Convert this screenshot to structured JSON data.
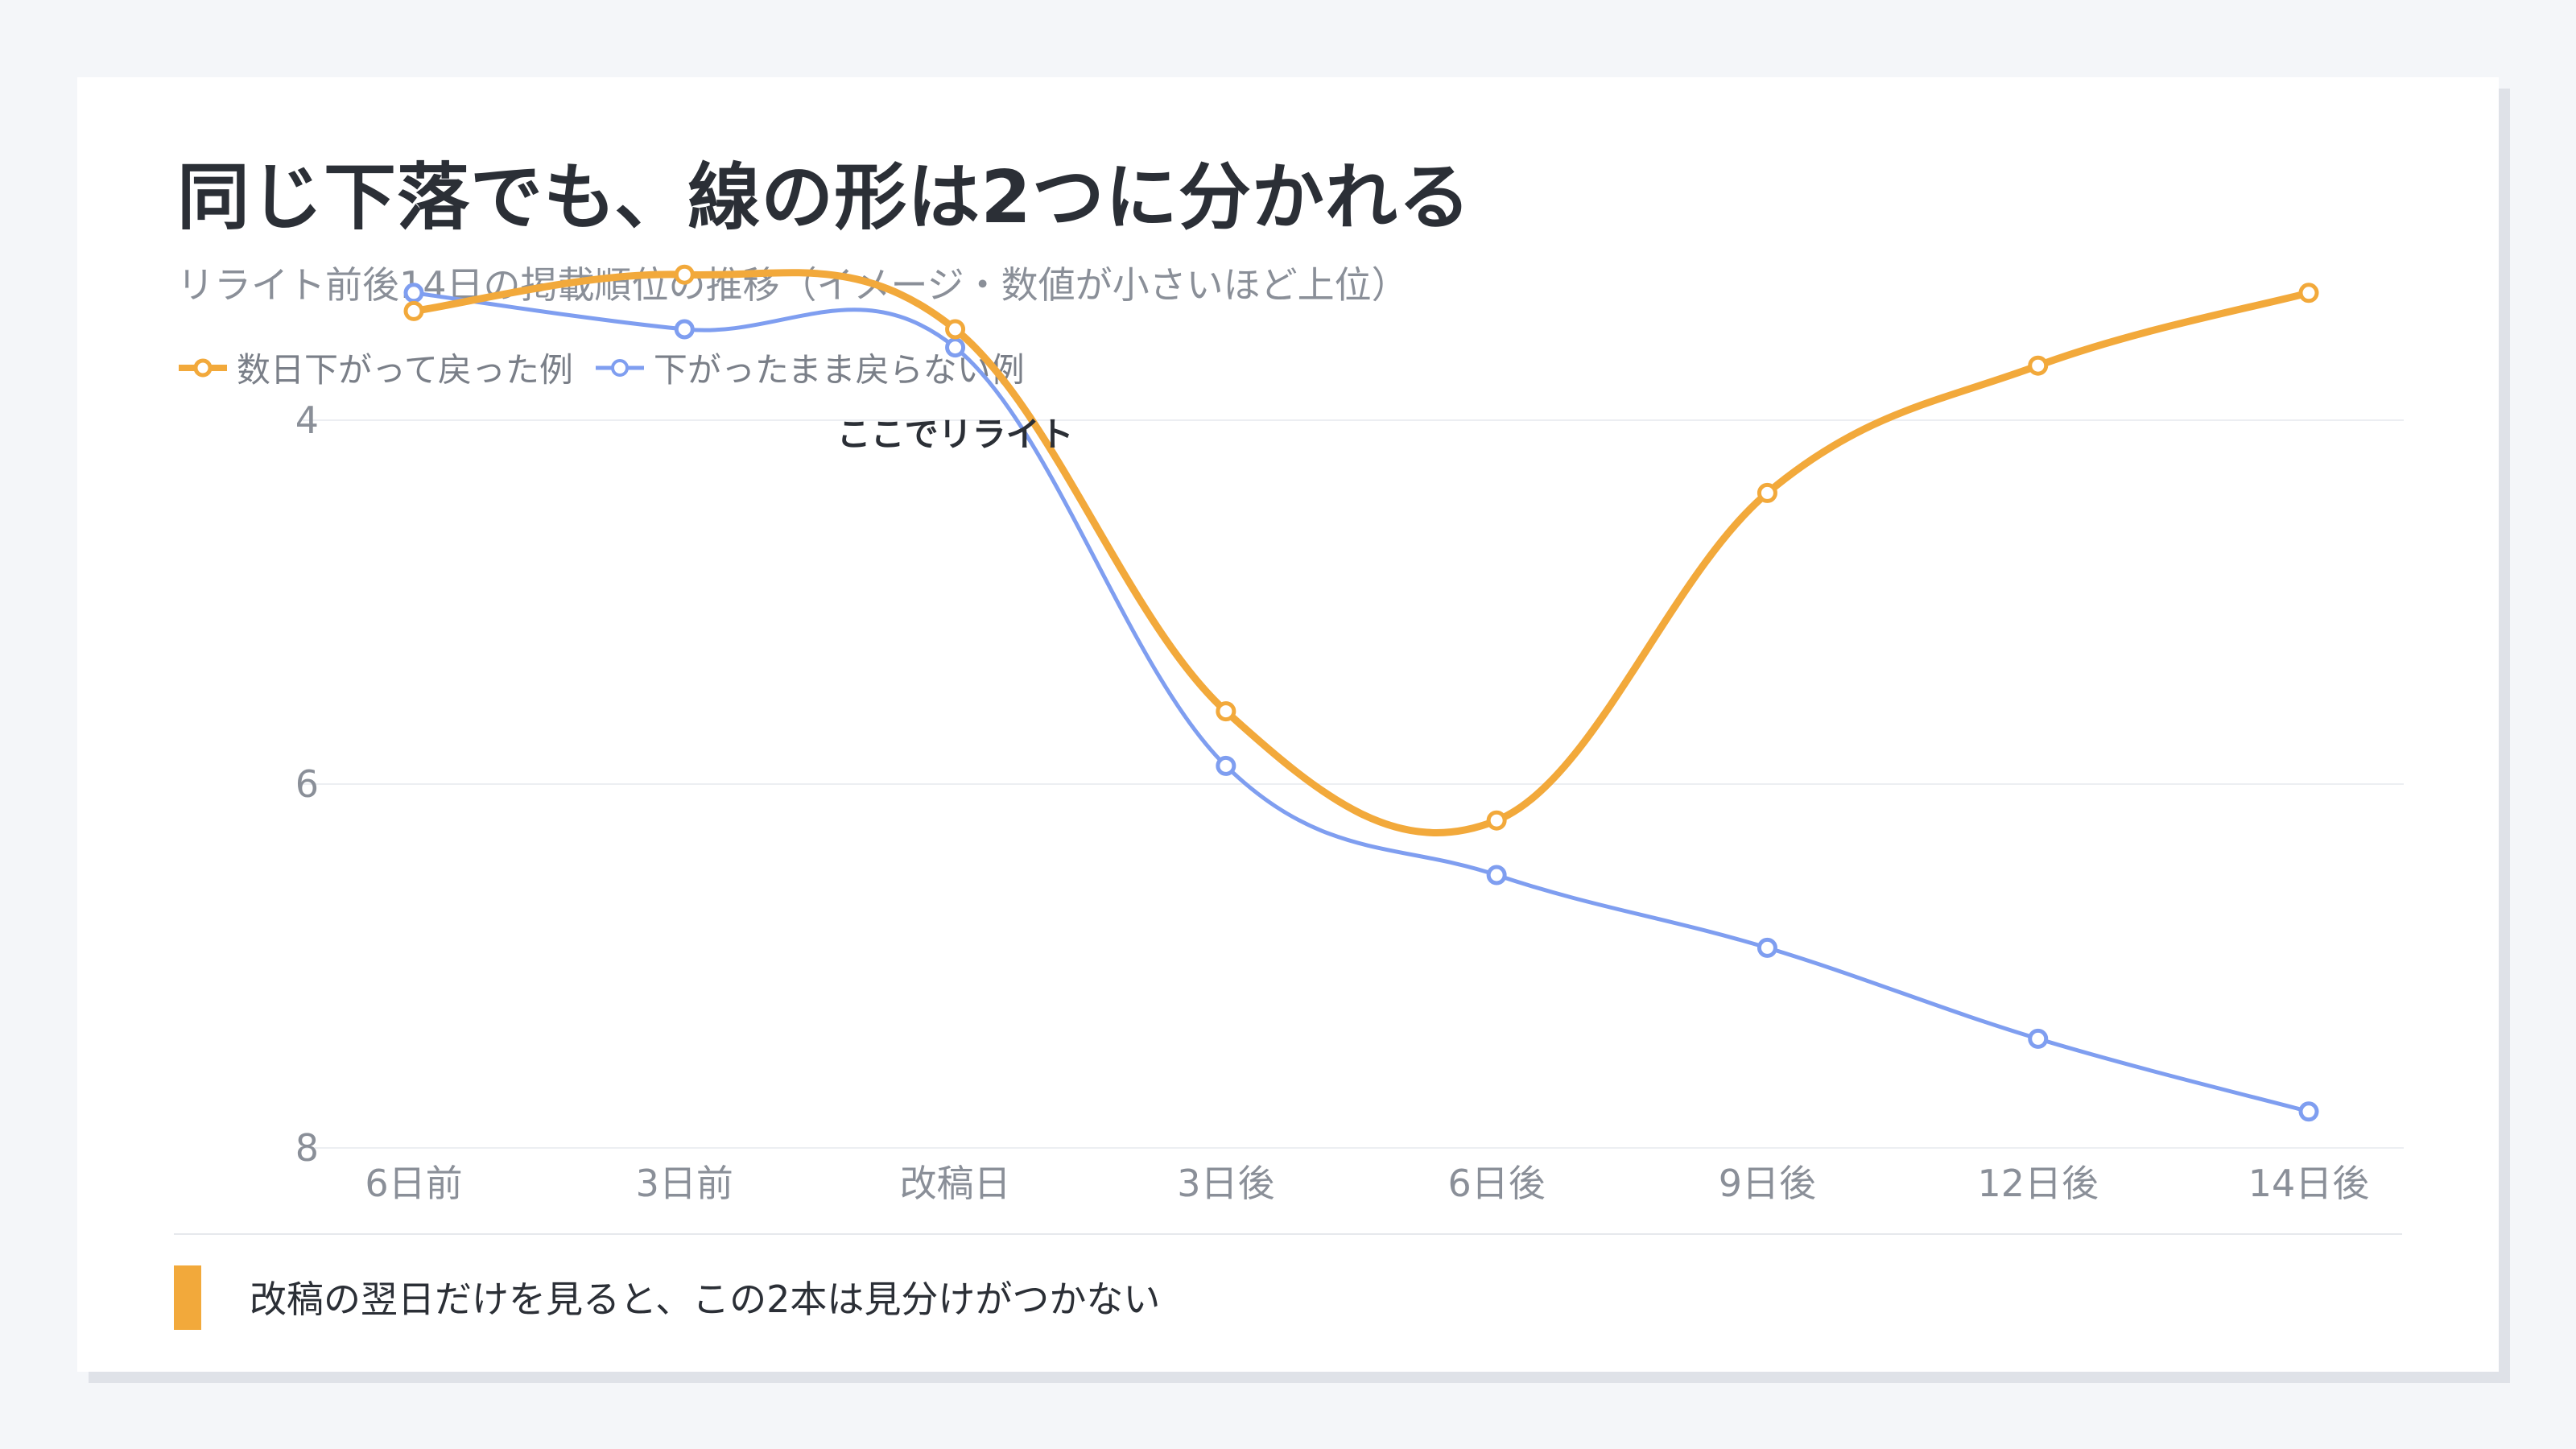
{
  "title": "同じ下落でも、線の形は2つに分かれる",
  "subtitle": "リライト前後14日の掲載順位の推移（イメージ・数値が小さいほど上位）",
  "footer_note": "改稿の翌日だけを見ると、この2本は見分けがつかない",
  "colors": {
    "series_a": "#f2a93b",
    "series_b": "#7f9ef0",
    "grid": "#eceef2",
    "tick": "#8a8f98",
    "annotation": "#2b2f36"
  },
  "chart_data": {
    "type": "line",
    "categories": [
      "6日前",
      "3日前",
      "改稿日",
      "3日後",
      "6日後",
      "9日後",
      "12日後",
      "14日後"
    ],
    "y_axis": {
      "reversed": true,
      "ylim": [
        3.0,
        8.0
      ],
      "ticks": [
        4,
        6,
        8
      ]
    },
    "grid": true,
    "legend_position": "top-left",
    "series": [
      {
        "name": "数日下がって戻った例",
        "values": [
          3.4,
          3.2,
          3.5,
          5.6,
          6.2,
          4.4,
          3.7,
          3.3
        ]
      },
      {
        "name": "下がったまま戻らない例",
        "values": [
          3.3,
          3.5,
          3.6,
          5.9,
          6.5,
          6.9,
          7.4,
          7.8
        ]
      }
    ],
    "annotations": [
      {
        "label": "ここでリライト",
        "category": "改稿日"
      }
    ]
  }
}
